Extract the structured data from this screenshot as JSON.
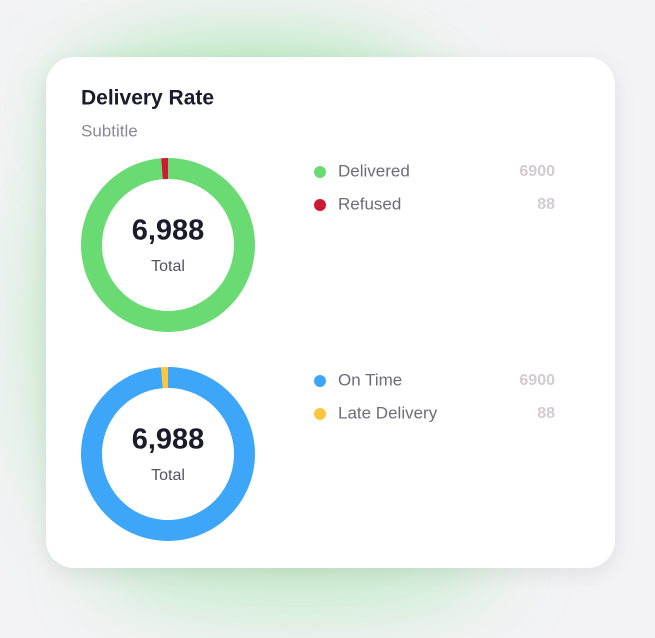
{
  "title": "Delivery Rate",
  "subtitle": "Subtitle",
  "chart_data": [
    {
      "type": "pie",
      "categories": [
        "Delivered",
        "Refused"
      ],
      "values": [
        6900,
        88
      ],
      "colors": [
        "#6adb72",
        "#cc1a35"
      ],
      "center_text": "6,988",
      "center_caption": "Total"
    },
    {
      "type": "pie",
      "categories": [
        "On Time",
        "Late Delivery"
      ],
      "values": [
        6900,
        88
      ],
      "colors": [
        "#3ea6f8",
        "#fcc73f"
      ],
      "center_text": "6,988",
      "center_caption": "Total"
    }
  ]
}
